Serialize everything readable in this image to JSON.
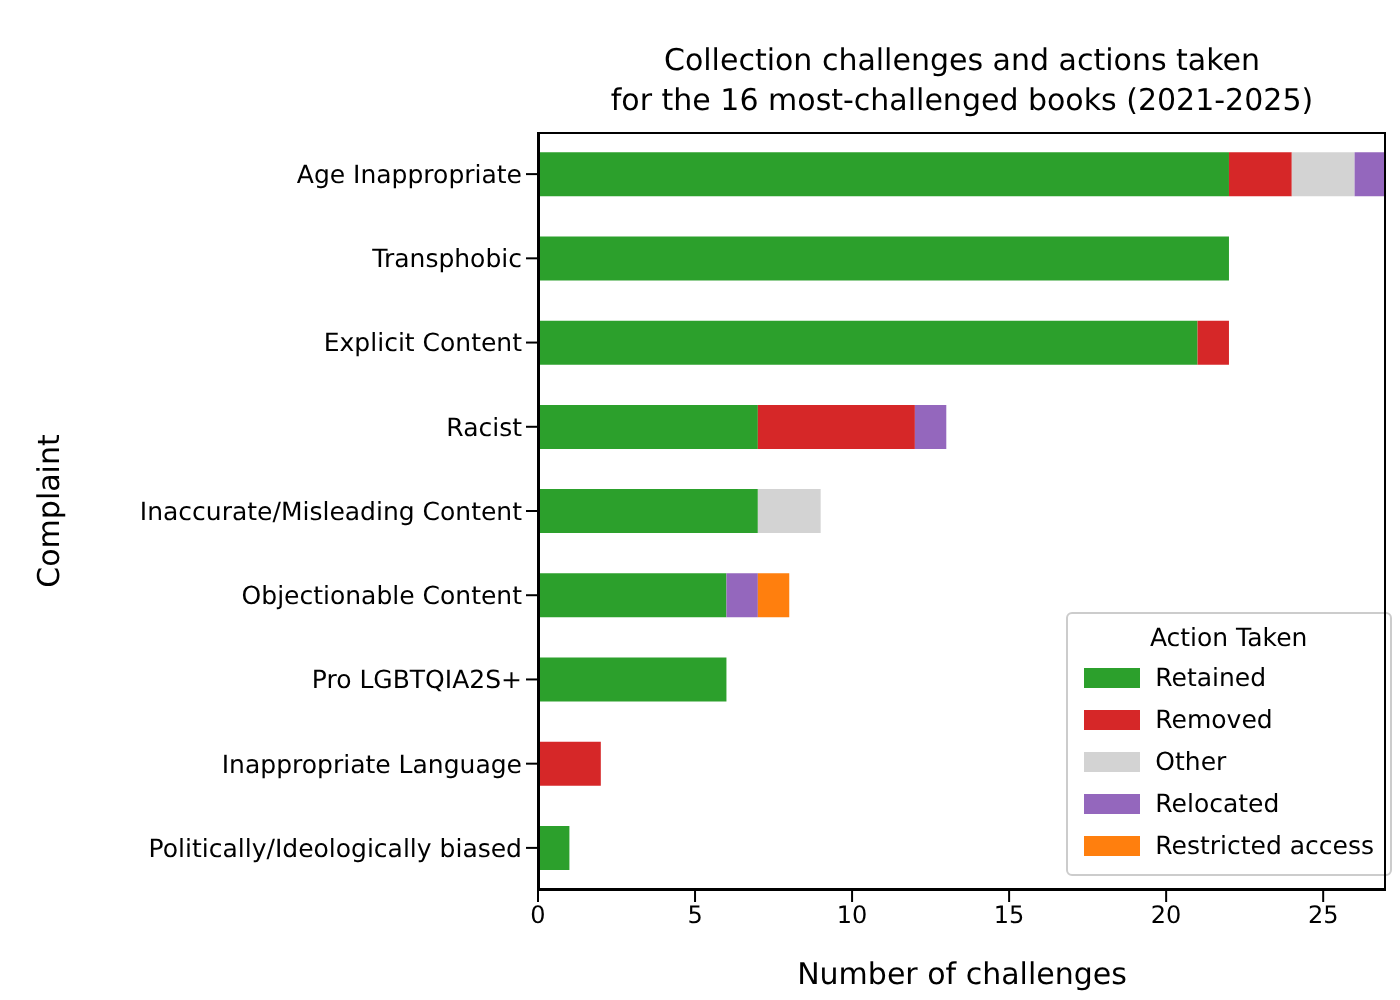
{
  "chart_data": {
    "type": "bar",
    "orientation": "horizontal",
    "stacked": true,
    "title": "Collection challenges and actions taken\nfor the 16 most-challenged books (2021-2025)",
    "xlabel": "Number of challenges",
    "ylabel": "Complaint",
    "legend_title": "Action Taken",
    "legend": "bottom right",
    "grid": false,
    "categories": [
      "Age Inappropriate",
      "Transphobic",
      "Explicit Content",
      "Racist",
      "Inaccurate/Misleading Content",
      "Objectionable Content",
      "Pro LGBTQIA2S+",
      "Inappropriate Language",
      "Politically/Ideologically biased"
    ],
    "xlim": [
      0,
      27
    ],
    "xticks": [
      0,
      5,
      10,
      15,
      20,
      25
    ],
    "series": [
      {
        "name": "Retained",
        "color": "#2ca02c",
        "values": [
          22,
          22,
          21,
          7,
          7,
          6,
          6,
          0,
          1
        ]
      },
      {
        "name": "Removed",
        "color": "#d62728",
        "values": [
          2,
          0,
          1,
          5,
          0,
          0,
          0,
          2,
          0
        ]
      },
      {
        "name": "Other",
        "color": "#d3d3d3",
        "values": [
          2,
          0,
          0,
          0,
          2,
          0,
          0,
          0,
          0
        ]
      },
      {
        "name": "Relocated",
        "color": "#9467bd",
        "values": [
          1,
          0,
          0,
          1,
          0,
          1,
          0,
          0,
          0
        ]
      },
      {
        "name": "Restricted access",
        "color": "#ff7f0e",
        "values": [
          0,
          0,
          0,
          0,
          0,
          1,
          0,
          0,
          0
        ]
      }
    ]
  }
}
